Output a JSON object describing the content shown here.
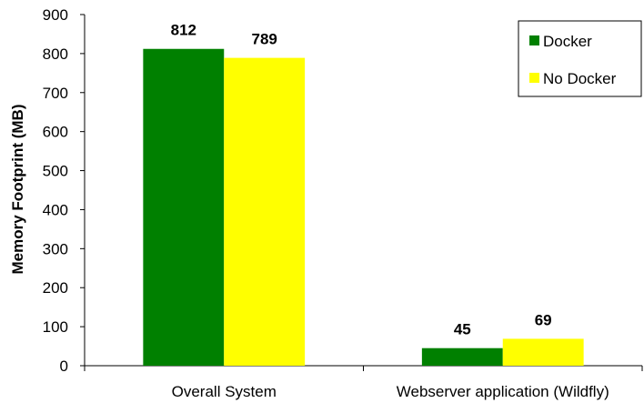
{
  "chart_data": {
    "type": "bar",
    "title": "",
    "xlabel": "",
    "ylabel": "Memory Footprint (MB)",
    "ylim": [
      0,
      900
    ],
    "yticks": [
      0,
      100,
      200,
      300,
      400,
      500,
      600,
      700,
      800,
      900
    ],
    "categories": [
      "Overall System",
      "Webserver application (Wildfly)"
    ],
    "series": [
      {
        "name": "Docker",
        "color": "#008000",
        "values": [
          812,
          45
        ]
      },
      {
        "name": "No Docker",
        "color": "#ffff00",
        "values": [
          789,
          69
        ]
      }
    ],
    "data_labels": true,
    "grid": false,
    "legend": {
      "placement": "top-right"
    }
  }
}
